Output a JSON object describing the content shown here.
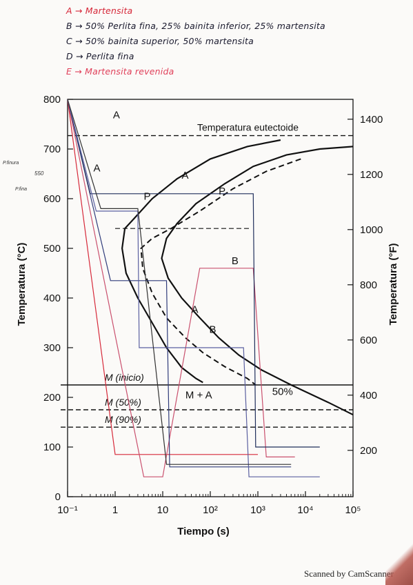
{
  "notes": [
    {
      "text": "A → Martensita",
      "color": "#d62839"
    },
    {
      "text": "B → 50% Perlita fina, 25% bainita inferior, 25% martensita",
      "color": "#1a1a2e"
    },
    {
      "text": "C → 50% bainita superior, 50% martensita",
      "color": "#1a1a2e"
    },
    {
      "text": "D → Perlita fina",
      "color": "#1a1a2e"
    },
    {
      "text": "E → Martensita revenida",
      "color": "#e0405a"
    }
  ],
  "margin_note": {
    "line1": "P.finura",
    "line2": "550",
    "line3": "P.fina"
  },
  "scan_text": "Scanned by CamScanner",
  "chart_data": {
    "type": "line",
    "title": "",
    "xlabel": "Tiempo (s)",
    "ylabel_left": "Temperatura (°C)",
    "ylabel_right": "Temperatura (°F)",
    "x_scale": "log",
    "xlim": [
      0.1,
      100000
    ],
    "ylim": [
      0,
      800
    ],
    "x_ticks": [
      0.1,
      1,
      10,
      100,
      1000,
      10000,
      100000
    ],
    "x_tick_labels": [
      "10⁻¹",
      "1",
      "10",
      "10²",
      "10³",
      "10⁴",
      "10⁵"
    ],
    "y_ticks": [
      0,
      100,
      200,
      300,
      400,
      500,
      600,
      700,
      800
    ],
    "y_tick_labels": [
      "0",
      "100",
      "200",
      "300",
      "400",
      "500",
      "600",
      "700",
      "800"
    ],
    "right_ticks_f": [
      200,
      400,
      600,
      800,
      1000,
      1200,
      1400
    ],
    "right_tick_labels": [
      "200",
      "400",
      "600",
      "800",
      "1000",
      "1200",
      "1400"
    ],
    "eutectoid_temp": 727,
    "eutectoid_label": "Temperatura eutectoide",
    "m_lines": [
      {
        "label": "M (inicio)",
        "temp": 225
      },
      {
        "label": "M (50%)",
        "temp": 175
      },
      {
        "label": "M (90%)",
        "temp": 140
      }
    ],
    "region_labels": [
      {
        "text": "A",
        "x": 0.9,
        "y": 762
      },
      {
        "text": "A",
        "x": 0.35,
        "y": 655
      },
      {
        "text": "A",
        "x": 25,
        "y": 640
      },
      {
        "text": "P",
        "x": 4,
        "y": 598
      },
      {
        "text": "P",
        "x": 150,
        "y": 608
      },
      {
        "text": "B",
        "x": 280,
        "y": 468
      },
      {
        "text": "A",
        "x": 40,
        "y": 370
      },
      {
        "text": "B",
        "x": 95,
        "y": 330
      },
      {
        "text": "M + A",
        "x": 30,
        "y": 198
      },
      {
        "text": "50%",
        "x": 2000,
        "y": 205
      }
    ],
    "curves": {
      "start": [
        [
          3000,
          718
        ],
        [
          600,
          705
        ],
        [
          100,
          680
        ],
        [
          20,
          640
        ],
        [
          6,
          600
        ],
        [
          2.5,
          560
        ],
        [
          1.6,
          540
        ],
        [
          1.4,
          500
        ],
        [
          1.7,
          450
        ],
        [
          3,
          400
        ],
        [
          6,
          350
        ],
        [
          12,
          300
        ],
        [
          25,
          260
        ],
        [
          50,
          238
        ],
        [
          70,
          230
        ]
      ],
      "fifty": [
        [
          8000,
          680
        ],
        [
          1500,
          655
        ],
        [
          300,
          620
        ],
        [
          60,
          575
        ],
        [
          15,
          540
        ],
        [
          6,
          520
        ],
        [
          3.5,
          500
        ],
        [
          3.8,
          460
        ],
        [
          6,
          410
        ],
        [
          12,
          360
        ],
        [
          30,
          320
        ],
        [
          70,
          290
        ],
        [
          200,
          262
        ],
        [
          600,
          238
        ],
        [
          900,
          225
        ]
      ],
      "end": [
        [
          100000,
          705
        ],
        [
          20000,
          700
        ],
        [
          4000,
          688
        ],
        [
          800,
          665
        ],
        [
          200,
          630
        ],
        [
          50,
          590
        ],
        [
          20,
          550
        ],
        [
          12,
          520
        ],
        [
          9.5,
          480
        ],
        [
          13,
          440
        ],
        [
          25,
          400
        ],
        [
          60,
          360
        ],
        [
          150,
          320
        ],
        [
          400,
          285
        ],
        [
          1200,
          255
        ],
        [
          5000,
          225
        ],
        [
          30000,
          190
        ],
        [
          100000,
          165
        ]
      ]
    },
    "paths": [
      {
        "name": "A",
        "color": "#d62839",
        "points": [
          [
            0.1,
            800
          ],
          [
            1,
            85
          ],
          [
            1000,
            85
          ]
        ]
      },
      {
        "name": "B",
        "color": "#c94f6d",
        "points": [
          [
            0.1,
            800
          ],
          [
            4,
            40
          ],
          [
            10,
            40
          ],
          [
            60,
            460
          ],
          [
            800,
            460
          ],
          [
            1500,
            80
          ],
          [
            6000,
            80
          ]
        ]
      },
      {
        "name": "C",
        "color": "#2f3b7a",
        "points": [
          [
            0.1,
            800
          ],
          [
            0.8,
            435
          ],
          [
            12,
            435
          ],
          [
            14,
            60
          ],
          [
            5000,
            60
          ]
        ]
      },
      {
        "name": "D",
        "color": "#1e2d5a",
        "points": [
          [
            0.1,
            800
          ],
          [
            0.3,
            610
          ],
          [
            800,
            610
          ],
          [
            900,
            100
          ],
          [
            20000,
            100
          ]
        ]
      },
      {
        "name": "E",
        "color": "#5a5fa0",
        "points": [
          [
            0.1,
            800
          ],
          [
            0.4,
            575
          ],
          [
            3,
            575
          ],
          [
            3.2,
            300
          ],
          [
            500,
            300
          ],
          [
            650,
            40
          ],
          [
            20000,
            40
          ]
        ]
      },
      {
        "name": "F",
        "color": "#303030",
        "points": [
          [
            0.1,
            800
          ],
          [
            0.5,
            580
          ],
          [
            3,
            580
          ],
          [
            12,
            65
          ],
          [
            5000,
            65
          ]
        ]
      }
    ]
  }
}
